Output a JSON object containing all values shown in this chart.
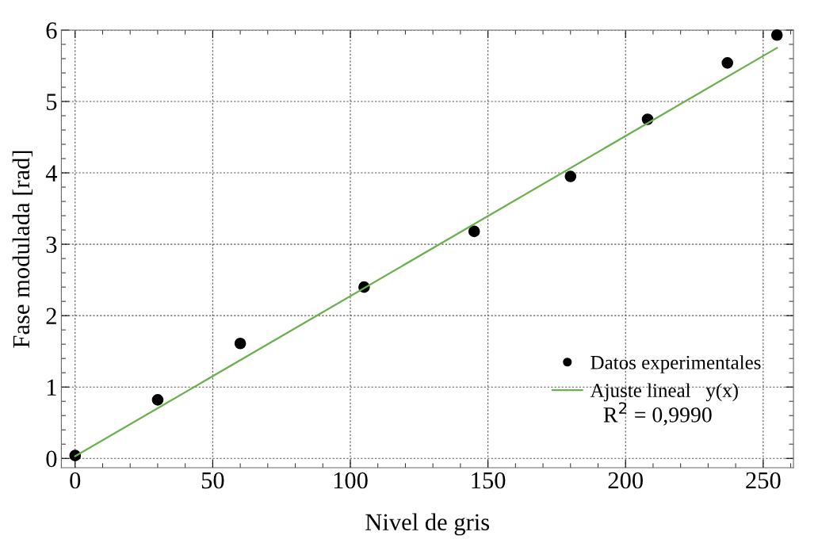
{
  "chart_data": {
    "type": "scatter",
    "xlabel": "Nivel de gris",
    "ylabel": "Fase modulada [rad]",
    "xlim": [
      -5,
      261
    ],
    "ylim": [
      -0.13,
      6
    ],
    "xticks": [
      0,
      50,
      100,
      150,
      200,
      250
    ],
    "yticks": [
      0,
      1,
      2,
      3,
      4,
      5,
      6
    ],
    "grid": true,
    "legend": "lower right",
    "series": [
      {
        "name": "Datos experimentales",
        "marker": "circle",
        "color": "#000000",
        "x": [
          0,
          30,
          60,
          105,
          145,
          180,
          208,
          237,
          255
        ],
        "values": [
          0.04,
          0.82,
          1.61,
          2.4,
          3.18,
          3.95,
          4.75,
          5.54,
          5.93
        ]
      },
      {
        "name": "Ajuste lineal   y(x)",
        "type": "line",
        "color": "#6ab04c",
        "x": [
          0,
          255
        ],
        "values": [
          0.03,
          5.75
        ]
      }
    ],
    "annotations": [
      "R$^{2}$ = 0,9990"
    ]
  }
}
